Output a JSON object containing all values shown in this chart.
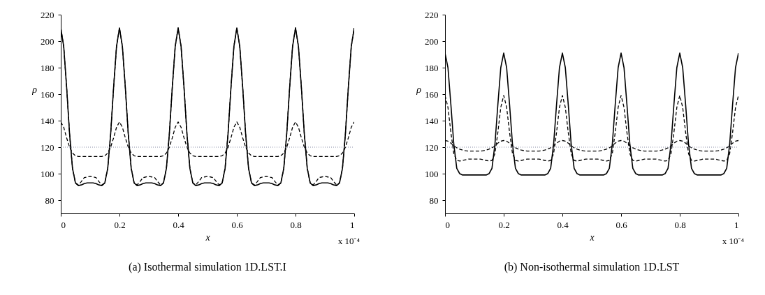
{
  "chart_data": [
    {
      "type": "line",
      "title": "(a) Isothermal simulation 1D.LST.I",
      "xlabel": "x",
      "ylabel": "ρ",
      "annotations": [
        "x 10⁻⁴"
      ],
      "xlim": [
        0,
        1
      ],
      "xticks": [
        0,
        0.2,
        0.4,
        0.6,
        0.8,
        1
      ],
      "ylim": [
        70,
        220
      ],
      "yticks": [
        80,
        100,
        120,
        140,
        160,
        180,
        200,
        220
      ],
      "grid": false,
      "x": [
        0,
        0.01,
        0.02,
        0.03,
        0.04,
        0.05,
        0.06,
        0.07,
        0.08,
        0.09,
        0.1,
        0.11,
        0.12,
        0.13,
        0.14,
        0.15,
        0.16,
        0.17,
        0.18,
        0.19,
        0.2,
        0.21,
        0.22,
        0.23,
        0.24,
        0.25,
        0.26,
        0.27,
        0.28,
        0.29,
        0.3,
        0.31,
        0.32,
        0.33,
        0.34,
        0.35,
        0.36,
        0.37,
        0.38,
        0.39,
        0.4,
        0.41,
        0.42,
        0.43,
        0.44,
        0.45,
        0.46,
        0.47,
        0.48,
        0.49,
        0.5,
        0.51,
        0.52,
        0.53,
        0.54,
        0.55,
        0.56,
        0.57,
        0.58,
        0.59,
        0.6,
        0.61,
        0.62,
        0.63,
        0.64,
        0.65,
        0.66,
        0.67,
        0.68,
        0.69,
        0.7,
        0.71,
        0.72,
        0.73,
        0.74,
        0.75,
        0.76,
        0.77,
        0.78,
        0.79,
        0.8,
        0.81,
        0.82,
        0.83,
        0.84,
        0.85,
        0.86,
        0.87,
        0.88,
        0.89,
        0.9,
        0.91,
        0.92,
        0.93,
        0.94,
        0.95,
        0.96,
        0.97,
        0.98,
        0.99,
        1
      ],
      "ref_lines": [
        {
          "axis": "y",
          "value": 120,
          "label": null,
          "color": "#8a8fa8",
          "line_style": "dotted"
        }
      ],
      "series": [
        {
          "color": "#000000",
          "line_style": "solid",
          "values": [
            210,
            196,
            165,
            130,
            104,
            93,
            91,
            91.5,
            92.5,
            93,
            93,
            93,
            92.5,
            91.5,
            91,
            93,
            104,
            130,
            165,
            196,
            210,
            196,
            165,
            130,
            104,
            93,
            91,
            91.5,
            92.5,
            93,
            93,
            93,
            92.5,
            91.5,
            91,
            93,
            104,
            130,
            165,
            196,
            210,
            196,
            165,
            130,
            104,
            93,
            91,
            91.5,
            92.5,
            93,
            93,
            93,
            92.5,
            91.5,
            91,
            93,
            104,
            130,
            165,
            196,
            210,
            196,
            165,
            130,
            104,
            93,
            91,
            91.5,
            92.5,
            93,
            93,
            93,
            92.5,
            91.5,
            91,
            93,
            104,
            130,
            165,
            196,
            210,
            196,
            165,
            130,
            104,
            93,
            91,
            91.5,
            92.5,
            93,
            93,
            93,
            92.5,
            91.5,
            91,
            93,
            104,
            130,
            165,
            196,
            210
          ]
        },
        {
          "color": "#000000",
          "line_style": "dashed",
          "values": [
            210,
            196,
            165,
            130,
            104,
            93,
            91.5,
            94,
            97,
            97.5,
            98,
            97.5,
            97,
            94,
            91.5,
            93,
            104,
            130,
            165,
            196,
            210,
            196,
            165,
            130,
            104,
            93,
            91.5,
            94,
            97,
            97.5,
            98,
            97.5,
            97,
            94,
            91.5,
            93,
            104,
            130,
            165,
            196,
            210,
            196,
            165,
            130,
            104,
            93,
            91.5,
            94,
            97,
            97.5,
            98,
            97.5,
            97,
            94,
            91.5,
            93,
            104,
            130,
            165,
            196,
            210,
            196,
            165,
            130,
            104,
            93,
            91.5,
            94,
            97,
            97.5,
            98,
            97.5,
            97,
            94,
            91.5,
            93,
            104,
            130,
            165,
            196,
            210,
            196,
            165,
            130,
            104,
            93,
            91.5,
            94,
            97,
            97.5,
            98,
            97.5,
            97,
            94,
            91.5,
            93,
            104,
            130,
            165,
            196,
            210
          ]
        },
        {
          "color": "#000000",
          "line_style": "dashed",
          "values": [
            139,
            135,
            127,
            120,
            115.5,
            113.5,
            113,
            113,
            113,
            113,
            113,
            113,
            113,
            113,
            113,
            113.5,
            115.5,
            120,
            127,
            135,
            139,
            135,
            127,
            120,
            115.5,
            113.5,
            113,
            113,
            113,
            113,
            113,
            113,
            113,
            113,
            113,
            113.5,
            115.5,
            120,
            127,
            135,
            139,
            135,
            127,
            120,
            115.5,
            113.5,
            113,
            113,
            113,
            113,
            113,
            113,
            113,
            113,
            113,
            113.5,
            115.5,
            120,
            127,
            135,
            139,
            135,
            127,
            120,
            115.5,
            113.5,
            113,
            113,
            113,
            113,
            113,
            113,
            113,
            113,
            113,
            113.5,
            115.5,
            120,
            127,
            135,
            139,
            135,
            127,
            120,
            115.5,
            113.5,
            113,
            113,
            113,
            113,
            113,
            113,
            113,
            113,
            113,
            113.5,
            115.5,
            120,
            127,
            135,
            139
          ]
        }
      ]
    },
    {
      "type": "line",
      "title": "(b) Non-isothermal simulation 1D.LST",
      "xlabel": "x",
      "ylabel": "ρ",
      "annotations": [
        "x 10⁻⁴"
      ],
      "xlim": [
        0,
        1
      ],
      "xticks": [
        0,
        0.2,
        0.4,
        0.6,
        0.8,
        1
      ],
      "ylim": [
        70,
        220
      ],
      "yticks": [
        80,
        100,
        120,
        140,
        160,
        180,
        200,
        220
      ],
      "grid": false,
      "x": [
        0,
        0.01,
        0.02,
        0.03,
        0.04,
        0.05,
        0.06,
        0.07,
        0.08,
        0.09,
        0.1,
        0.11,
        0.12,
        0.13,
        0.14,
        0.15,
        0.16,
        0.17,
        0.18,
        0.19,
        0.2,
        0.21,
        0.22,
        0.23,
        0.24,
        0.25,
        0.26,
        0.27,
        0.28,
        0.29,
        0.3,
        0.31,
        0.32,
        0.33,
        0.34,
        0.35,
        0.36,
        0.37,
        0.38,
        0.39,
        0.4,
        0.41,
        0.42,
        0.43,
        0.44,
        0.45,
        0.46,
        0.47,
        0.48,
        0.49,
        0.5,
        0.51,
        0.52,
        0.53,
        0.54,
        0.55,
        0.56,
        0.57,
        0.58,
        0.59,
        0.6,
        0.61,
        0.62,
        0.63,
        0.64,
        0.65,
        0.66,
        0.67,
        0.68,
        0.69,
        0.7,
        0.71,
        0.72,
        0.73,
        0.74,
        0.75,
        0.76,
        0.77,
        0.78,
        0.79,
        0.8,
        0.81,
        0.82,
        0.83,
        0.84,
        0.85,
        0.86,
        0.87,
        0.88,
        0.89,
        0.9,
        0.91,
        0.92,
        0.93,
        0.94,
        0.95,
        0.96,
        0.97,
        0.98,
        0.99,
        1
      ],
      "ref_lines": [
        {
          "axis": "y",
          "value": 120,
          "label": null,
          "color": "#8a8fa8",
          "line_style": "dotted"
        }
      ],
      "series": [
        {
          "color": "#000000",
          "line_style": "solid",
          "values": [
            191,
            180,
            152,
            122,
            104,
            100,
            99,
            99,
            99,
            99,
            99,
            99,
            99,
            99,
            99,
            100,
            104,
            122,
            152,
            180,
            191,
            180,
            152,
            122,
            104,
            100,
            99,
            99,
            99,
            99,
            99,
            99,
            99,
            99,
            99,
            100,
            104,
            122,
            152,
            180,
            191,
            180,
            152,
            122,
            104,
            100,
            99,
            99,
            99,
            99,
            99,
            99,
            99,
            99,
            99,
            100,
            104,
            122,
            152,
            180,
            191,
            180,
            152,
            122,
            104,
            100,
            99,
            99,
            99,
            99,
            99,
            99,
            99,
            99,
            99,
            100,
            104,
            122,
            152,
            180,
            191,
            180,
            152,
            122,
            104,
            100,
            99,
            99,
            99,
            99,
            99,
            99,
            99,
            99,
            99,
            100,
            104,
            122,
            152,
            180,
            191
          ]
        },
        {
          "color": "#000000",
          "line_style": "dashed",
          "values": [
            159,
            150,
            131,
            115,
            110,
            109.5,
            110,
            110.5,
            111,
            111,
            111,
            111,
            111,
            110.5,
            110,
            109.5,
            110,
            115,
            131,
            150,
            159,
            150,
            131,
            115,
            110,
            109.5,
            110,
            110.5,
            111,
            111,
            111,
            111,
            111,
            110.5,
            110,
            109.5,
            110,
            115,
            131,
            150,
            159,
            150,
            131,
            115,
            110,
            109.5,
            110,
            110.5,
            111,
            111,
            111,
            111,
            111,
            110.5,
            110,
            109.5,
            110,
            115,
            131,
            150,
            159,
            150,
            131,
            115,
            110,
            109.5,
            110,
            110.5,
            111,
            111,
            111,
            111,
            111,
            110.5,
            110,
            109.5,
            110,
            115,
            131,
            150,
            159,
            150,
            131,
            115,
            110,
            109.5,
            110,
            110.5,
            111,
            111,
            111,
            111,
            111,
            110.5,
            110,
            109.5,
            110,
            115,
            131,
            150,
            159
          ]
        },
        {
          "color": "#000000",
          "line_style": "dashed",
          "values": [
            125,
            124.5,
            123,
            121,
            119.5,
            118.5,
            117.8,
            117.3,
            117,
            117,
            117,
            117,
            117,
            117.3,
            117.8,
            118.5,
            119.5,
            121,
            123,
            124.5,
            125,
            124.5,
            123,
            121,
            119.5,
            118.5,
            117.8,
            117.3,
            117,
            117,
            117,
            117,
            117,
            117.3,
            117.8,
            118.5,
            119.5,
            121,
            123,
            124.5,
            125,
            124.5,
            123,
            121,
            119.5,
            118.5,
            117.8,
            117.3,
            117,
            117,
            117,
            117,
            117,
            117.3,
            117.8,
            118.5,
            119.5,
            121,
            123,
            124.5,
            125,
            124.5,
            123,
            121,
            119.5,
            118.5,
            117.8,
            117.3,
            117,
            117,
            117,
            117,
            117,
            117.3,
            117.8,
            118.5,
            119.5,
            121,
            123,
            124.5,
            125,
            124.5,
            123,
            121,
            119.5,
            118.5,
            117.8,
            117.3,
            117,
            117,
            117,
            117,
            117,
            117.3,
            117.8,
            118.5,
            119.5,
            121,
            123,
            124.5,
            125
          ]
        }
      ]
    }
  ]
}
